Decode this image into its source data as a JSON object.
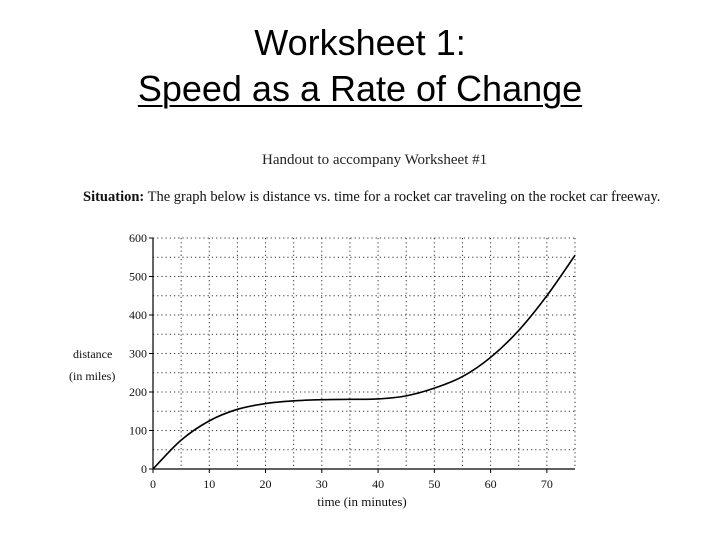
{
  "slide": {
    "title_line1": "Worksheet 1:",
    "title_line2": "Speed as a Rate of Change"
  },
  "handout": {
    "caption": "Handout to accompany Worksheet #1",
    "situation_label": "Situation:",
    "situation_text": "The graph below is distance vs. time for a rocket car traveling on the rocket car freeway."
  },
  "chart_data": {
    "type": "line",
    "xlabel": "time (in minutes)",
    "ylabel": "distance",
    "ylabel_units": "(in miles)",
    "xlim": [
      0,
      75
    ],
    "ylim": [
      0,
      600
    ],
    "x_ticks": [
      0,
      10,
      20,
      30,
      40,
      50,
      60,
      70
    ],
    "y_ticks": [
      0,
      100,
      200,
      300,
      400,
      500,
      600
    ],
    "grid": true,
    "grid_style": "dotted",
    "series": [
      {
        "x": [
          0,
          5,
          10,
          15,
          20,
          25,
          30,
          35,
          40,
          45,
          50,
          55,
          60,
          65,
          70,
          75
        ],
        "y": [
          0,
          75,
          125,
          155,
          170,
          177,
          180,
          181,
          182,
          190,
          210,
          240,
          290,
          360,
          450,
          555
        ]
      }
    ]
  }
}
